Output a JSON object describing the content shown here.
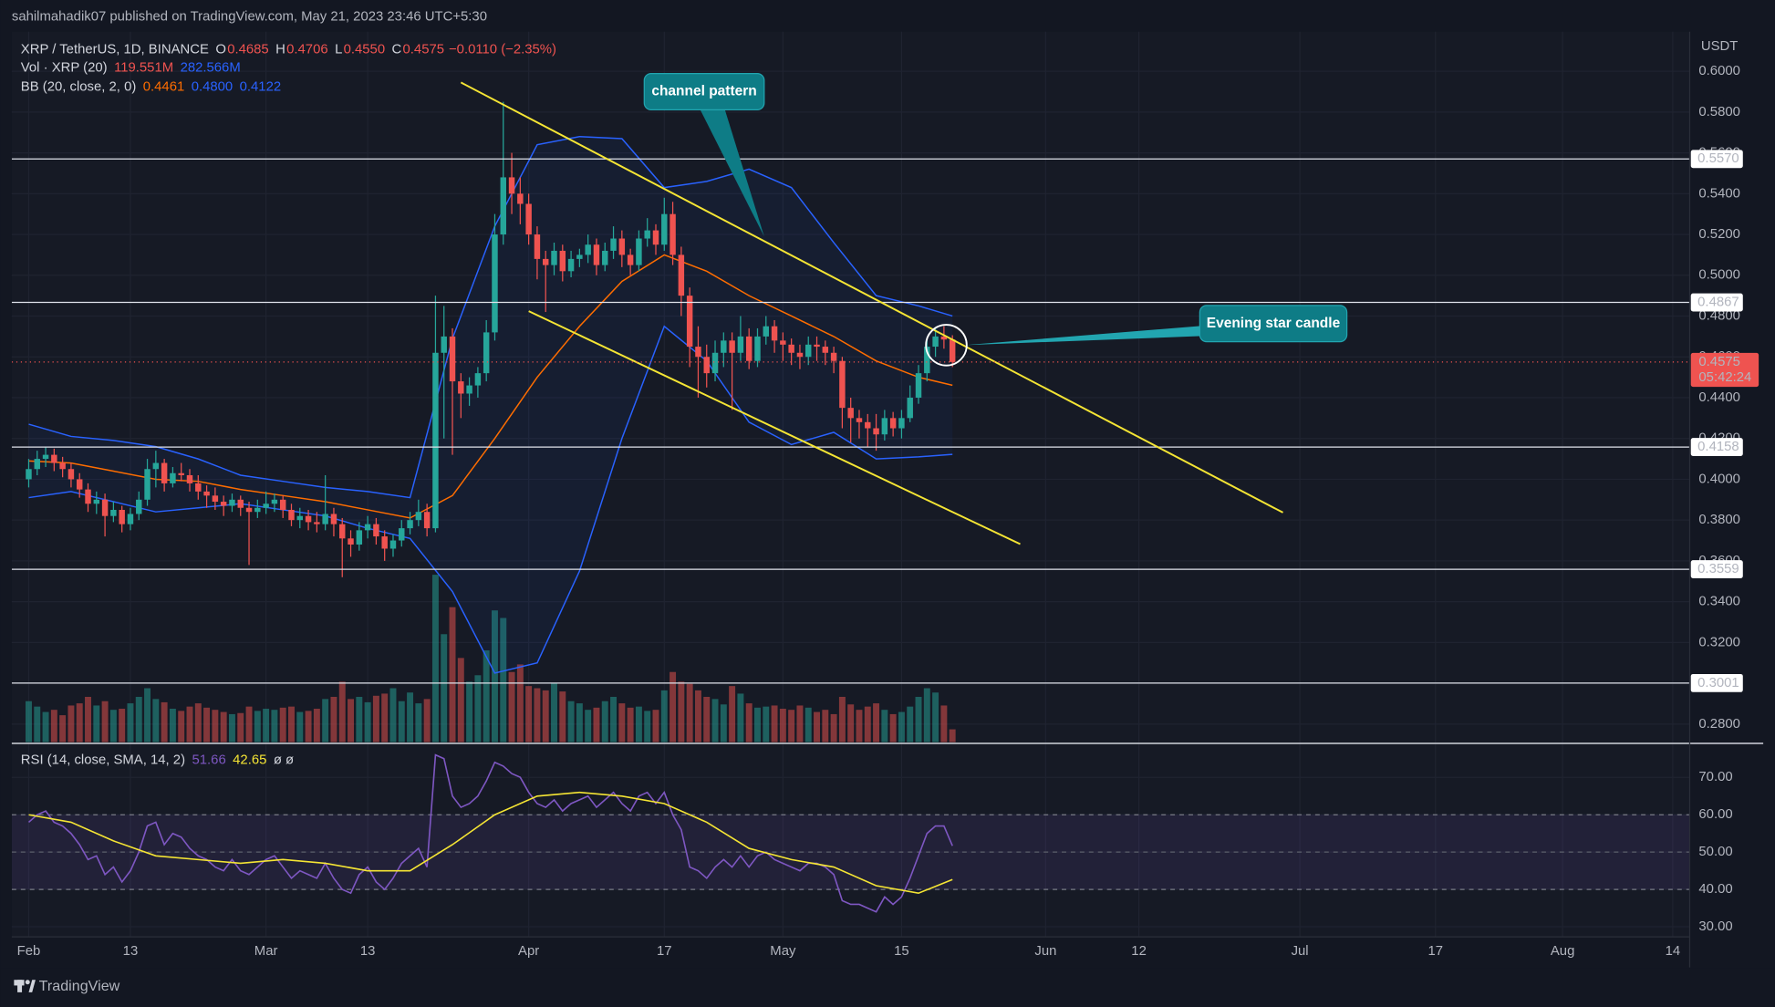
{
  "header": {
    "published": "sahilmahadik07 published on TradingView.com, May 21, 2023 23:46 UTC+5:30"
  },
  "footer": {
    "brand": "TradingView"
  },
  "chart_data": {
    "type": "candlestick",
    "legend": {
      "symbol": "XRP / TetherUS, 1D, BINANCE",
      "ohlc_names": [
        "O",
        "H",
        "L",
        "C"
      ],
      "ohlc_labels": [
        "0.4685",
        "0.4706",
        "0.4550",
        "0.4575"
      ],
      "change": "−0.0110 (−2.35%)",
      "volume_title": "Vol · XRP (20)",
      "volume_values": [
        "119.551M",
        "282.566M"
      ],
      "bb_title": "BB (20, close, 2, 0)",
      "bb_labels": [
        "0.4461",
        "0.4800",
        "0.4122"
      ],
      "rsi_title": "RSI (14, close, SMA, 14, 2)",
      "rsi_extra": "ø ø"
    },
    "y_unit": "USDT",
    "xlim": [
      "2023-01-30",
      "2023-08-16"
    ],
    "xticks": [
      {
        "value": "2023-02-01",
        "label": "Feb"
      },
      {
        "value": "2023-02-13",
        "label": "13"
      },
      {
        "value": "2023-03-01",
        "label": "Mar"
      },
      {
        "value": "2023-03-13",
        "label": "13"
      },
      {
        "value": "2023-04-01",
        "label": "Apr"
      },
      {
        "value": "2023-04-17",
        "label": "17"
      },
      {
        "value": "2023-05-01",
        "label": "May"
      },
      {
        "value": "2023-05-15",
        "label": "15"
      },
      {
        "value": "2023-06-01",
        "label": "Jun"
      },
      {
        "value": "2023-06-12",
        "label": "12"
      },
      {
        "value": "2023-07-01",
        "label": "Jul"
      },
      {
        "value": "2023-07-17",
        "label": "17"
      },
      {
        "value": "2023-08-01",
        "label": "Aug"
      },
      {
        "value": "2023-08-14",
        "label": "14"
      }
    ],
    "ylim": [
      0.2711,
      0.6194
    ],
    "yticks": [
      {
        "value": 0.28,
        "label": "0.2800"
      },
      {
        "value": 0.3,
        "label": "0.3000"
      },
      {
        "value": 0.32,
        "label": "0.3200"
      },
      {
        "value": 0.34,
        "label": "0.3400"
      },
      {
        "value": 0.36,
        "label": "0.3600"
      },
      {
        "value": 0.38,
        "label": "0.3800"
      },
      {
        "value": 0.4,
        "label": "0.4000"
      },
      {
        "value": 0.42,
        "label": "0.4200"
      },
      {
        "value": 0.44,
        "label": "0.4400"
      },
      {
        "value": 0.46,
        "label": "0.4600"
      },
      {
        "value": 0.48,
        "label": "0.4800"
      },
      {
        "value": 0.5,
        "label": "0.5000"
      },
      {
        "value": 0.52,
        "label": "0.5200"
      },
      {
        "value": 0.54,
        "label": "0.5400"
      },
      {
        "value": 0.56,
        "label": "0.5600"
      },
      {
        "value": 0.58,
        "label": "0.5800"
      },
      {
        "value": 0.6,
        "label": "0.6000"
      }
    ],
    "x": [
      "2023-02-01",
      "2023-02-02",
      "2023-02-03",
      "2023-02-04",
      "2023-02-05",
      "2023-02-06",
      "2023-02-07",
      "2023-02-08",
      "2023-02-09",
      "2023-02-10",
      "2023-02-11",
      "2023-02-12",
      "2023-02-13",
      "2023-02-14",
      "2023-02-15",
      "2023-02-16",
      "2023-02-17",
      "2023-02-18",
      "2023-02-19",
      "2023-02-20",
      "2023-02-21",
      "2023-02-22",
      "2023-02-23",
      "2023-02-24",
      "2023-02-25",
      "2023-02-26",
      "2023-02-27",
      "2023-02-28",
      "2023-03-01",
      "2023-03-02",
      "2023-03-03",
      "2023-03-04",
      "2023-03-05",
      "2023-03-06",
      "2023-03-07",
      "2023-03-08",
      "2023-03-09",
      "2023-03-10",
      "2023-03-11",
      "2023-03-12",
      "2023-03-13",
      "2023-03-14",
      "2023-03-15",
      "2023-03-16",
      "2023-03-17",
      "2023-03-18",
      "2023-03-19",
      "2023-03-20",
      "2023-03-21",
      "2023-03-22",
      "2023-03-23",
      "2023-03-24",
      "2023-03-25",
      "2023-03-26",
      "2023-03-27",
      "2023-03-28",
      "2023-03-29",
      "2023-03-30",
      "2023-03-31",
      "2023-04-01",
      "2023-04-02",
      "2023-04-03",
      "2023-04-04",
      "2023-04-05",
      "2023-04-06",
      "2023-04-07",
      "2023-04-08",
      "2023-04-09",
      "2023-04-10",
      "2023-04-11",
      "2023-04-12",
      "2023-04-13",
      "2023-04-14",
      "2023-04-15",
      "2023-04-16",
      "2023-04-17",
      "2023-04-18",
      "2023-04-19",
      "2023-04-20",
      "2023-04-21",
      "2023-04-22",
      "2023-04-23",
      "2023-04-24",
      "2023-04-25",
      "2023-04-26",
      "2023-04-27",
      "2023-04-28",
      "2023-04-29",
      "2023-04-30",
      "2023-05-01",
      "2023-05-02",
      "2023-05-03",
      "2023-05-04",
      "2023-05-05",
      "2023-05-06",
      "2023-05-07",
      "2023-05-08",
      "2023-05-09",
      "2023-05-10",
      "2023-05-11",
      "2023-05-12",
      "2023-05-13",
      "2023-05-14",
      "2023-05-15",
      "2023-05-16",
      "2023-05-17",
      "2023-05-18",
      "2023-05-19",
      "2023-05-20",
      "2023-05-21"
    ],
    "candles": {
      "up_color": "#26a69a",
      "down_color": "#ef5350",
      "open": [
        0.4,
        0.405,
        0.41,
        0.412,
        0.408,
        0.405,
        0.4,
        0.395,
        0.388,
        0.39,
        0.382,
        0.385,
        0.378,
        0.383,
        0.39,
        0.405,
        0.408,
        0.398,
        0.403,
        0.402,
        0.398,
        0.394,
        0.392,
        0.389,
        0.387,
        0.39,
        0.386,
        0.384,
        0.386,
        0.388,
        0.39,
        0.385,
        0.38,
        0.382,
        0.379,
        0.378,
        0.383,
        0.378,
        0.371,
        0.368,
        0.375,
        0.378,
        0.372,
        0.366,
        0.37,
        0.376,
        0.38,
        0.384,
        0.376,
        0.462,
        0.47,
        0.448,
        0.442,
        0.446,
        0.452,
        0.472,
        0.52,
        0.548,
        0.54,
        0.535,
        0.52,
        0.508,
        0.505,
        0.512,
        0.502,
        0.508,
        0.51,
        0.515,
        0.505,
        0.512,
        0.518,
        0.51,
        0.505,
        0.518,
        0.522,
        0.515,
        0.53,
        0.51,
        0.49,
        0.465,
        0.46,
        0.452,
        0.462,
        0.468,
        0.462,
        0.47,
        0.458,
        0.47,
        0.475,
        0.468,
        0.466,
        0.462,
        0.46,
        0.466,
        0.465,
        0.462,
        0.458,
        0.435,
        0.43,
        0.428,
        0.425,
        0.422,
        0.43,
        0.425,
        0.43,
        0.44,
        0.452,
        0.465,
        0.47,
        0.4685
      ],
      "high": [
        0.41,
        0.414,
        0.416,
        0.415,
        0.411,
        0.408,
        0.403,
        0.398,
        0.394,
        0.393,
        0.389,
        0.387,
        0.386,
        0.394,
        0.41,
        0.414,
        0.41,
        0.406,
        0.408,
        0.405,
        0.402,
        0.397,
        0.396,
        0.392,
        0.393,
        0.392,
        0.389,
        0.39,
        0.394,
        0.393,
        0.392,
        0.388,
        0.386,
        0.385,
        0.384,
        0.402,
        0.386,
        0.381,
        0.375,
        0.379,
        0.382,
        0.381,
        0.375,
        0.373,
        0.38,
        0.384,
        0.39,
        0.388,
        0.49,
        0.485,
        0.474,
        0.452,
        0.45,
        0.455,
        0.478,
        0.53,
        0.585,
        0.56,
        0.548,
        0.54,
        0.524,
        0.512,
        0.516,
        0.515,
        0.512,
        0.513,
        0.52,
        0.518,
        0.516,
        0.524,
        0.522,
        0.513,
        0.522,
        0.528,
        0.525,
        0.538,
        0.536,
        0.514,
        0.494,
        0.475,
        0.466,
        0.468,
        0.472,
        0.472,
        0.48,
        0.474,
        0.474,
        0.48,
        0.478,
        0.472,
        0.469,
        0.466,
        0.47,
        0.47,
        0.468,
        0.465,
        0.46,
        0.44,
        0.434,
        0.432,
        0.432,
        0.434,
        0.433,
        0.434,
        0.446,
        0.456,
        0.469,
        0.474,
        0.475,
        0.4706
      ],
      "low": [
        0.396,
        0.402,
        0.406,
        0.404,
        0.401,
        0.396,
        0.391,
        0.384,
        0.383,
        0.372,
        0.379,
        0.374,
        0.375,
        0.38,
        0.387,
        0.396,
        0.394,
        0.396,
        0.399,
        0.394,
        0.39,
        0.386,
        0.385,
        0.382,
        0.384,
        0.382,
        0.358,
        0.381,
        0.383,
        0.384,
        0.381,
        0.377,
        0.376,
        0.375,
        0.374,
        0.375,
        0.372,
        0.352,
        0.362,
        0.365,
        0.371,
        0.368,
        0.36,
        0.362,
        0.367,
        0.373,
        0.377,
        0.372,
        0.374,
        0.42,
        0.412,
        0.43,
        0.436,
        0.44,
        0.448,
        0.468,
        0.515,
        0.53,
        0.525,
        0.515,
        0.498,
        0.482,
        0.5,
        0.497,
        0.499,
        0.504,
        0.506,
        0.5,
        0.502,
        0.508,
        0.504,
        0.5,
        0.502,
        0.514,
        0.51,
        0.512,
        0.505,
        0.48,
        0.455,
        0.44,
        0.445,
        0.448,
        0.455,
        0.434,
        0.458,
        0.454,
        0.455,
        0.466,
        0.462,
        0.458,
        0.456,
        0.454,
        0.456,
        0.458,
        0.456,
        0.452,
        0.425,
        0.418,
        0.42,
        0.416,
        0.414,
        0.419,
        0.421,
        0.42,
        0.428,
        0.437,
        0.448,
        0.46,
        0.464,
        0.455
      ],
      "close": [
        0.405,
        0.41,
        0.412,
        0.408,
        0.405,
        0.4,
        0.395,
        0.388,
        0.39,
        0.382,
        0.385,
        0.378,
        0.383,
        0.39,
        0.405,
        0.408,
        0.398,
        0.403,
        0.402,
        0.398,
        0.394,
        0.392,
        0.389,
        0.387,
        0.39,
        0.386,
        0.384,
        0.386,
        0.388,
        0.39,
        0.385,
        0.38,
        0.382,
        0.379,
        0.378,
        0.383,
        0.378,
        0.371,
        0.368,
        0.375,
        0.378,
        0.372,
        0.366,
        0.37,
        0.376,
        0.38,
        0.384,
        0.376,
        0.462,
        0.47,
        0.448,
        0.442,
        0.446,
        0.452,
        0.472,
        0.52,
        0.548,
        0.54,
        0.535,
        0.52,
        0.508,
        0.505,
        0.512,
        0.502,
        0.508,
        0.51,
        0.515,
        0.505,
        0.512,
        0.518,
        0.51,
        0.505,
        0.518,
        0.522,
        0.515,
        0.53,
        0.51,
        0.49,
        0.465,
        0.46,
        0.452,
        0.462,
        0.468,
        0.462,
        0.47,
        0.458,
        0.47,
        0.475,
        0.468,
        0.466,
        0.462,
        0.46,
        0.466,
        0.465,
        0.462,
        0.458,
        0.435,
        0.43,
        0.428,
        0.425,
        0.422,
        0.43,
        0.425,
        0.43,
        0.44,
        0.452,
        0.465,
        0.47,
        0.4685,
        0.4575
      ]
    },
    "volume": {
      "up_color": "rgba(38,166,154,0.5)",
      "down_color": "rgba(239,83,80,0.5)",
      "values": [
        380,
        330,
        280,
        300,
        250,
        340,
        360,
        420,
        340,
        380,
        300,
        310,
        360,
        420,
        500,
        400,
        370,
        310,
        290,
        330,
        360,
        320,
        300,
        280,
        260,
        270,
        330,
        290,
        310,
        300,
        320,
        330,
        280,
        290,
        310,
        400,
        420,
        560,
        400,
        420,
        370,
        430,
        450,
        500,
        380,
        460,
        360,
        400,
        1550,
        1000,
        1250,
        780,
        560,
        620,
        850,
        1220,
        1150,
        650,
        720,
        520,
        500,
        480,
        550,
        470,
        380,
        360,
        300,
        320,
        380,
        420,
        360,
        320,
        330,
        290,
        300,
        480,
        650,
        560,
        540,
        480,
        420,
        400,
        350,
        520,
        450,
        360,
        320,
        330,
        340,
        310,
        300,
        340,
        320,
        280,
        300,
        260,
        420,
        350,
        300,
        330,
        360,
        300,
        260,
        280,
        330,
        420,
        500,
        460,
        340,
        119.551
      ]
    },
    "indicator_x": [
      "2023-02-01",
      "2023-02-06",
      "2023-02-11",
      "2023-02-16",
      "2023-02-21",
      "2023-02-26",
      "2023-03-03",
      "2023-03-08",
      "2023-03-13",
      "2023-03-18",
      "2023-03-23",
      "2023-03-28",
      "2023-04-02",
      "2023-04-07",
      "2023-04-12",
      "2023-04-17",
      "2023-04-22",
      "2023-04-27",
      "2023-05-02",
      "2023-05-07",
      "2023-05-12",
      "2023-05-17",
      "2023-05-21"
    ],
    "bollinger": {
      "upper_color": "#2962ff",
      "basis_color": "#ff6d00",
      "fill": "rgba(41,98,255,0.06)",
      "upper": [
        0.427,
        0.421,
        0.419,
        0.416,
        0.41,
        0.402,
        0.399,
        0.396,
        0.394,
        0.391,
        0.469,
        0.524,
        0.564,
        0.568,
        0.567,
        0.543,
        0.546,
        0.552,
        0.543,
        0.516,
        0.49,
        0.485,
        0.48
      ],
      "basis": [
        0.409,
        0.408,
        0.404,
        0.4,
        0.399,
        0.395,
        0.392,
        0.389,
        0.385,
        0.381,
        0.392,
        0.42,
        0.45,
        0.475,
        0.497,
        0.51,
        0.502,
        0.49,
        0.48,
        0.47,
        0.458,
        0.45,
        0.4461
      ],
      "lower": [
        0.391,
        0.394,
        0.389,
        0.384,
        0.386,
        0.388,
        0.385,
        0.382,
        0.376,
        0.371,
        0.345,
        0.305,
        0.31,
        0.355,
        0.42,
        0.475,
        0.458,
        0.428,
        0.417,
        0.423,
        0.41,
        0.411,
        0.4122
      ]
    },
    "levels": [
      {
        "value": 0.557,
        "label": "0.5570"
      },
      {
        "value": 0.4867,
        "label": "0.4867"
      },
      {
        "value": 0.4158,
        "label": "0.4158"
      },
      {
        "value": 0.3559,
        "label": "0.3559"
      },
      {
        "value": 0.3001,
        "label": "0.3001"
      }
    ],
    "countdown": "05:42:24",
    "trendline_color": "#f5e534",
    "trendlines": [
      {
        "x": [
          "2023-03-24",
          "2023-06-29"
        ],
        "y": [
          0.5945,
          0.3837
        ]
      },
      {
        "x": [
          "2023-04-01",
          "2023-05-29"
        ],
        "y": [
          0.4824,
          0.3682
        ]
      }
    ],
    "annotations": [
      {
        "text": "channel pattern"
      },
      {
        "text": "Evening star candle"
      }
    ],
    "rsi": {
      "color": "#7e57c2",
      "ma_color": "#f5e534",
      "ylim": [
        27.3,
        78.8
      ],
      "band": [
        40,
        60
      ],
      "midline": 50,
      "yticks": [
        {
          "value": 30,
          "label": "30.00"
        },
        {
          "value": 40,
          "label": "40.00"
        },
        {
          "value": 50,
          "label": "50.00"
        },
        {
          "value": 60,
          "label": "60.00"
        },
        {
          "value": 70,
          "label": "70.00"
        }
      ],
      "values": [
        58,
        60,
        61,
        58,
        57,
        55,
        52,
        48,
        49,
        44,
        46,
        42,
        45,
        50,
        57,
        58,
        52,
        55,
        54,
        51,
        49,
        48,
        46,
        45,
        48,
        45,
        44,
        46,
        48,
        49,
        46,
        43,
        45,
        44,
        43,
        47,
        43,
        40,
        39,
        44,
        46,
        42,
        40,
        43,
        47,
        49,
        51,
        46,
        76,
        75,
        65,
        62,
        63,
        65,
        69,
        74,
        73,
        71,
        70,
        66,
        63,
        62,
        64,
        61,
        63,
        64,
        65,
        62,
        64,
        66,
        63,
        61,
        65,
        66,
        63,
        66,
        60,
        56,
        46,
        45,
        43,
        46,
        48,
        46,
        49,
        46,
        49,
        50,
        48,
        47,
        46,
        45,
        47,
        47,
        46,
        44,
        37,
        36,
        36,
        35,
        34,
        38,
        36,
        38,
        43,
        49,
        55,
        57,
        57,
        51.66
      ],
      "ma": [
        60,
        58,
        53,
        49,
        48,
        47,
        48,
        47,
        45,
        45,
        52,
        60,
        65,
        66,
        65,
        63,
        58,
        51,
        48,
        46,
        41,
        39,
        42.65
      ]
    }
  }
}
